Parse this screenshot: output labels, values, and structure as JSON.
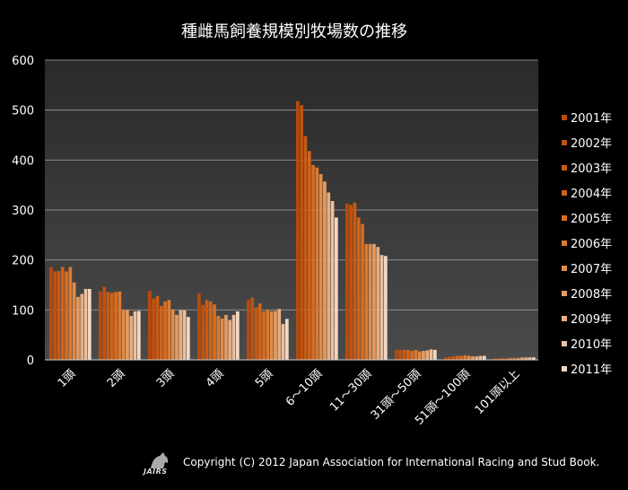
{
  "chart_data": {
    "type": "bar",
    "title": "種雌馬飼養規模別牧場数の推移",
    "xlabel": "",
    "ylabel": "",
    "ylim": [
      0,
      600
    ],
    "yticks": [
      0,
      100,
      200,
      300,
      400,
      500,
      600
    ],
    "grid": true,
    "legend_position": "right",
    "categories": [
      "1頭",
      "2頭",
      "3頭",
      "4頭",
      "5頭",
      "6～10頭",
      "11～30頭",
      "31頭～50頭",
      "51頭～100頭",
      "101頭以上"
    ],
    "series": [
      {
        "name": "2001年",
        "color": "#b84a0c",
        "values": [
          186,
          137,
          138,
          133,
          120,
          518,
          313,
          20,
          5,
          3
        ]
      },
      {
        "name": "2002年",
        "color": "#c0520f",
        "values": [
          177,
          146,
          123,
          110,
          125,
          510,
          310,
          20,
          6,
          3
        ]
      },
      {
        "name": "2003年",
        "color": "#c85b14",
        "values": [
          178,
          136,
          128,
          120,
          105,
          448,
          315,
          20,
          7,
          3
        ]
      },
      {
        "name": "2004年",
        "color": "#d0641a",
        "values": [
          186,
          134,
          108,
          117,
          113,
          418,
          285,
          20,
          8,
          3
        ]
      },
      {
        "name": "2005年",
        "color": "#d66d22",
        "values": [
          177,
          136,
          117,
          111,
          97,
          390,
          272,
          18,
          8,
          4
        ]
      },
      {
        "name": "2006年",
        "color": "#dc7a30",
        "values": [
          186,
          137,
          120,
          88,
          100,
          385,
          232,
          20,
          9,
          4
        ]
      },
      {
        "name": "2007年",
        "color": "#e08c48",
        "values": [
          155,
          100,
          101,
          83,
          97,
          372,
          232,
          17,
          8,
          4
        ]
      },
      {
        "name": "2008年",
        "color": "#e49c62",
        "values": [
          126,
          100,
          90,
          90,
          98,
          357,
          232,
          18,
          7,
          5
        ]
      },
      {
        "name": "2009年",
        "color": "#e8ad80",
        "values": [
          132,
          88,
          100,
          80,
          102,
          335,
          226,
          19,
          7,
          5
        ]
      },
      {
        "name": "2010年",
        "color": "#ecc0a0",
        "values": [
          142,
          97,
          99,
          90,
          72,
          318,
          210,
          21,
          8,
          5
        ]
      },
      {
        "name": "2011年",
        "color": "#f2d8c4",
        "values": [
          142,
          98,
          86,
          97,
          82,
          285,
          208,
          20,
          8,
          5
        ]
      }
    ]
  },
  "footer": {
    "logo_text": "JAIRS",
    "copyright": "Copyright (C) 2012 Japan Association for International Racing and Stud Book."
  }
}
